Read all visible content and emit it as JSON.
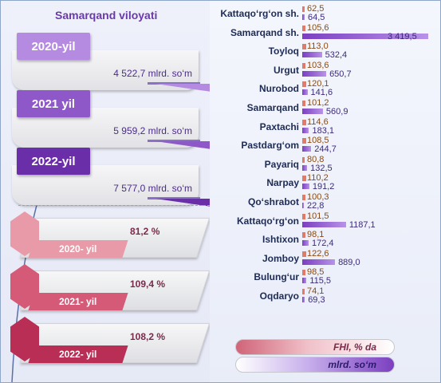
{
  "title": "Samarqand viloyati",
  "years": [
    {
      "label": "2020-yil",
      "value": "4 522,7 mlrd. so‘m"
    },
    {
      "label": "2021 yil",
      "value": "5 959,2 mlrd. so‘m"
    },
    {
      "label": "2022-yil",
      "value": "7 577,0 mlrd. so‘m"
    }
  ],
  "growth": [
    {
      "label": "2020- yil",
      "pct": "81,2 %"
    },
    {
      "label": "2021- yil",
      "pct": "109,4 %"
    },
    {
      "label": "2022- yil",
      "pct": "108,2 %"
    }
  ],
  "legend": {
    "fhi": "FHI, % da",
    "mlrd": "mlrd. so‘m"
  },
  "colors": {
    "fhi_bar": "#e07b6a",
    "mlrd_bar": "#7b3fc0",
    "year_tags": [
      "#b48be0",
      "#8f58c8",
      "#6a2fa8"
    ],
    "growth_tags": [
      "#e89aa8",
      "#d45a78",
      "#b82e55"
    ]
  },
  "chart_data": {
    "type": "bar",
    "categories": [
      "Kattaqo‘rg‘on sh.",
      "Samarqand sh.",
      "Toyloq",
      "Urgut",
      "Nurobod",
      "Samarqand",
      "Paxtachi",
      "Pastdarg‘om",
      "Payariq",
      "Narpay",
      "Qo‘shrabot",
      "Kattaqo‘rg‘on",
      "Ishtixon",
      "Jomboy",
      "Bulung‘ur",
      "Oqdaryo"
    ],
    "series": [
      {
        "name": "FHI, % da",
        "values": [
          62.5,
          105.6,
          113.0,
          103.6,
          120.1,
          101.2,
          114.6,
          108.5,
          80.8,
          110.2,
          100.3,
          101.5,
          98.1,
          122.6,
          98.5,
          74.1
        ],
        "labels": [
          "62,5",
          "105,6",
          "113,0",
          "103,6",
          "120,1",
          "101,2",
          "114,6",
          "108,5",
          "80,8",
          "110,2",
          "100,3",
          "101,5",
          "98,1",
          "122,6",
          "98,5",
          "74,1"
        ]
      },
      {
        "name": "mlrd. so‘m",
        "values": [
          64.5,
          3419.5,
          532.4,
          650.7,
          141.6,
          560.9,
          183.1,
          244.7,
          132.5,
          191.2,
          22.8,
          1187.1,
          172.4,
          889.0,
          115.5,
          69.3
        ],
        "labels": [
          "64,5",
          "3 419,5",
          "532,4",
          "650,7",
          "141,6",
          "560,9",
          "183,1",
          "244,7",
          "132,5",
          "191,2",
          "22,8",
          "1187,1",
          "172,4",
          "889,0",
          "115,5",
          "69,3"
        ]
      }
    ]
  }
}
